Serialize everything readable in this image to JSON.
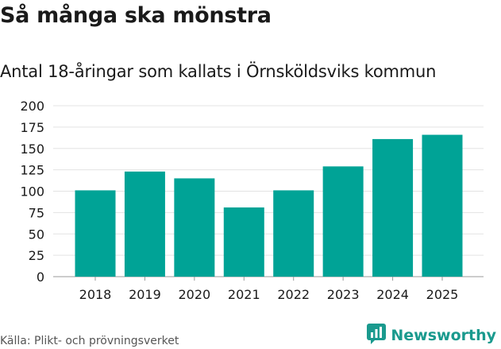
{
  "header": {
    "title": "Så många ska mönstra",
    "subtitle": "Antal 18-åringar som kallats i Örnsköldsviks kommun"
  },
  "footer": {
    "source": "Källa: Plikt- och prövningsverket",
    "brand": "Newsworthy",
    "brand_icon": "newsworthy-logo-icon"
  },
  "colors": {
    "bar": "#00a396",
    "grid": "#e3e3e3",
    "axis_text": "#1a1a1a",
    "brand": "#1a9a8e"
  },
  "chart_data": {
    "type": "bar",
    "title": "Så många ska mönstra",
    "subtitle": "Antal 18-åringar som kallats i Örnsköldsviks kommun",
    "categories": [
      "2018",
      "2019",
      "2020",
      "2021",
      "2022",
      "2023",
      "2024",
      "2025"
    ],
    "values": [
      101,
      123,
      115,
      81,
      101,
      129,
      161,
      166
    ],
    "xlabel": "",
    "ylabel": "",
    "ylim": [
      0,
      200
    ],
    "yticks": [
      0,
      25,
      50,
      75,
      100,
      125,
      150,
      175,
      200
    ],
    "grid": true,
    "legend": "none"
  }
}
